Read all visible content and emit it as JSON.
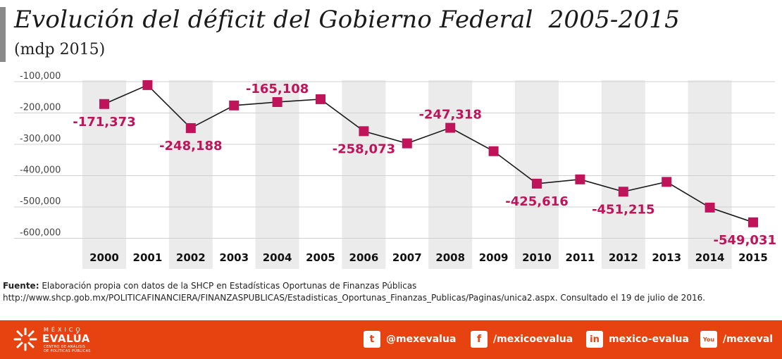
{
  "title": "Evolución del déficit del Gobierno Federal  2005-2015",
  "subtitle": "(mdp 2015)",
  "chart_data": {
    "type": "line",
    "x": [
      "2000",
      "2001",
      "2002",
      "2003",
      "2004",
      "2005",
      "2006",
      "2007",
      "2008",
      "2009",
      "2010",
      "2011",
      "2012",
      "2013",
      "2014",
      "2015"
    ],
    "series": [
      {
        "values": [
          -171373,
          -111000,
          -248188,
          -176000,
          -165108,
          -156000,
          -258073,
          -297000,
          -247318,
          -322000,
          -425616,
          -412000,
          -451215,
          -420000,
          -502000,
          -549031
        ]
      }
    ],
    "data_labels": [
      {
        "index": 0,
        "text": "-171,373"
      },
      {
        "index": 2,
        "text": "-248,188"
      },
      {
        "index": 4,
        "text": "-165,108"
      },
      {
        "index": 6,
        "text": "-258,073"
      },
      {
        "index": 8,
        "text": "-247,318"
      },
      {
        "index": 10,
        "text": "-425,616"
      },
      {
        "index": 12,
        "text": "-451,215"
      },
      {
        "index": 15,
        "text": "-549,031"
      }
    ],
    "y_ticks": [
      -100000,
      -200000,
      -300000,
      -400000,
      -500000,
      -600000
    ],
    "y_tick_labels": [
      "-100,000",
      "-200,000",
      "-300,000",
      "-400,000",
      "-500,000",
      "-600,000"
    ],
    "ylim": [
      -650000,
      -90000
    ],
    "grid": true,
    "alternating_column_shading": true,
    "marker_color": "#c0145a",
    "line_color": "#1a1a1a",
    "label_color": "#c0145a"
  },
  "source": {
    "label": "Fuente:",
    "text": " Elaboración propia con datos de la SHCP en Estadísticas Oportunas de Finanzas Públicas",
    "url_line": "http://www.shcp.gob.mx/POLITICAFINANCIERA/FINANZASPUBLICAS/Estadisticas_Oportunas_Finanzas_Publicas/Paginas/unica2.aspx. Consultado el 19 de julio de 2016."
  },
  "footer": {
    "background": "#e64310",
    "logo_top": "MÉXICO",
    "logo_main": "EVALÚA",
    "logo_sub_1": "CENTRO DE ANÁLISIS",
    "logo_sub_2": "DE POLÍTICAS PÚBLICAS",
    "social": [
      {
        "icon": "twitter-icon",
        "glyph": "t",
        "handle": "@mexevalua"
      },
      {
        "icon": "facebook-icon",
        "glyph": "f",
        "handle": "/mexicoevalua"
      },
      {
        "icon": "linkedin-icon",
        "glyph": "in",
        "handle": "mexico-evalua"
      },
      {
        "icon": "youtube-icon",
        "glyph": "You",
        "handle": "/mexeval"
      }
    ]
  }
}
